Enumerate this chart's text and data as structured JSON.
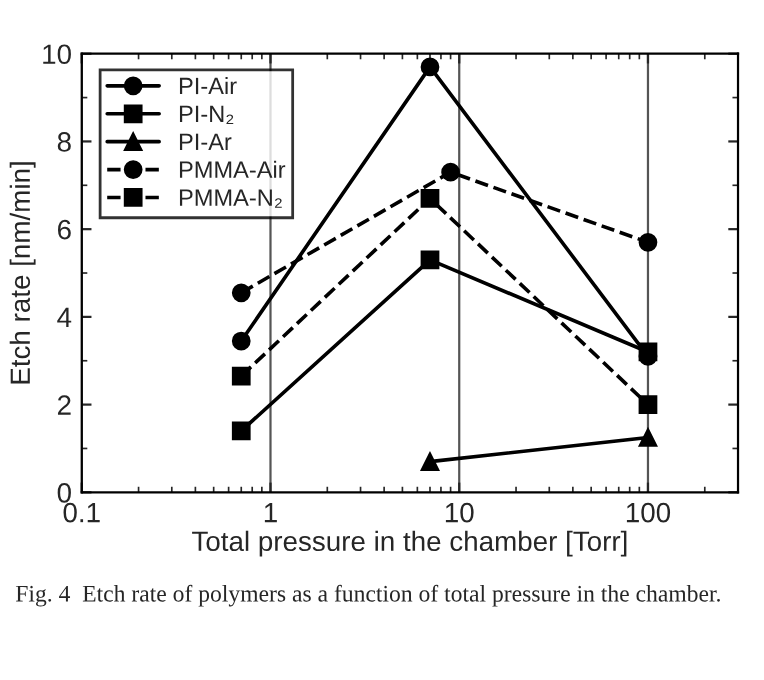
{
  "chart_data": {
    "type": "line",
    "xlabel": "Total pressure in the chamber [Torr]",
    "ylabel": "Etch rate [nm/min]",
    "annotations": [
      "Fig. 4  Etch rate of polymers as a function of total pressure in the chamber."
    ],
    "xlim": [
      0.1,
      300
    ],
    "xticks": [
      0.1,
      1,
      10,
      100
    ],
    "ylim": [
      0,
      10
    ],
    "yticks": [
      0,
      2,
      4,
      6,
      8,
      10
    ],
    "log": "x",
    "grid": "x",
    "legend": "top left",
    "series": [
      {
        "name": "PI-Air",
        "color": "#000000",
        "marker": "circle",
        "line_style": "solid",
        "x": [
          0.7,
          7,
          100
        ],
        "values": [
          3.45,
          9.7,
          3.1
        ]
      },
      {
        "name": "PI-N₂",
        "color": "#000000",
        "marker": "square",
        "line_style": "solid",
        "x": [
          0.7,
          7,
          100
        ],
        "values": [
          1.4,
          5.3,
          3.2
        ]
      },
      {
        "name": "PI-Ar",
        "color": "#000000",
        "marker": "triangle",
        "line_style": "solid",
        "x": [
          7,
          100
        ],
        "values": [
          0.7,
          1.25
        ]
      },
      {
        "name": "PMMA-Air",
        "color": "#000000",
        "marker": "circle",
        "line_style": "dashed",
        "x": [
          0.7,
          9,
          100
        ],
        "values": [
          4.55,
          7.3,
          5.7
        ]
      },
      {
        "name": "PMMA-N₂",
        "color": "#000000",
        "marker": "square",
        "line_style": "dashed",
        "x": [
          0.7,
          7,
          100
        ],
        "values": [
          2.65,
          6.7,
          2.0
        ]
      }
    ]
  }
}
